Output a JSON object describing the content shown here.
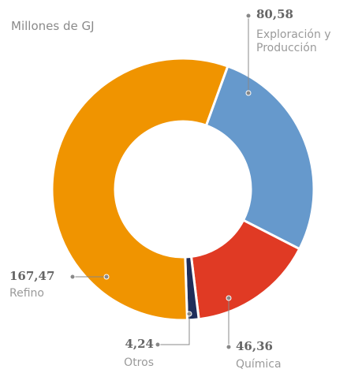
{
  "chart_data": {
    "type": "donut",
    "title": "Millones de GJ",
    "categories": [
      "Exploración y Producción",
      "Química",
      "Otros",
      "Refino"
    ],
    "values": [
      80.58,
      46.36,
      4.24,
      167.47
    ],
    "value_labels": [
      "80,58",
      "46,36",
      "4,24",
      "167,47"
    ],
    "colors": [
      "#6699cc",
      "#e03a24",
      "#1f2d5a",
      "#f09400"
    ]
  }
}
